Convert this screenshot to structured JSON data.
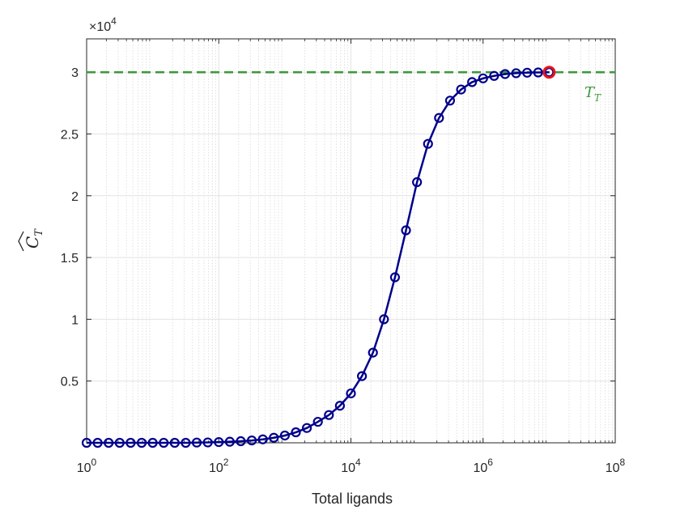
{
  "chart_data": {
    "type": "line",
    "xscale": "log",
    "xlim": [
      1,
      100000000
    ],
    "ylim": [
      0,
      32700
    ],
    "xlabel": "Total ligands",
    "ylabel_base": "C",
    "ylabel_sub": "T",
    "yticks": [
      5000,
      10000,
      15000,
      20000,
      25000,
      30000
    ],
    "ytick_labels": [
      "0.5",
      "1",
      "1.5",
      "2",
      "2.5",
      "3"
    ],
    "xticks": [
      {
        "value": 1,
        "base": "10",
        "exp": "0"
      },
      {
        "value": 100,
        "base": "10",
        "exp": "2"
      },
      {
        "value": 10000,
        "base": "10",
        "exp": "4"
      },
      {
        "value": 1000000,
        "base": "10",
        "exp": "6"
      },
      {
        "value": 100000000,
        "base": "10",
        "exp": "8"
      }
    ],
    "y_multiplier": {
      "prefix": "×10",
      "exp": "4"
    },
    "grid": true,
    "series": [
      {
        "color": "#00008b",
        "marker": "circle",
        "x": [
          1,
          1.468,
          2.154,
          3.162,
          4.642,
          6.813,
          10,
          14.68,
          21.54,
          31.62,
          46.42,
          68.13,
          100,
          146.8,
          215.4,
          316.2,
          464.2,
          681.3,
          1000,
          1468,
          2154,
          3162,
          4642,
          6813,
          10000,
          14678,
          21544,
          31623,
          46416,
          68129,
          100000,
          146780,
          215440,
          316230,
          464160,
          681290,
          1000000,
          1467800,
          2154400,
          3162300,
          4641600,
          6812900,
          10000000
        ],
        "y": [
          0,
          0,
          0,
          0,
          0,
          0,
          0,
          0,
          0,
          0,
          20,
          30,
          60,
          90,
          130,
          190,
          280,
          410,
          590,
          850,
          1200,
          1700,
          2250,
          3000,
          4000,
          5400,
          7300,
          10000,
          13400,
          17200,
          21100,
          24200,
          26300,
          27700,
          28600,
          29200,
          29500,
          29700,
          29850,
          29920,
          29960,
          29980,
          30000
        ]
      }
    ],
    "highlight_point": {
      "x": 10000000,
      "y": 30000,
      "color": "#e8161c"
    },
    "reference_line": {
      "y": 30000,
      "label_base": "T",
      "label_sub": "T",
      "color": "#3a9a3a",
      "style": "dashed"
    }
  }
}
